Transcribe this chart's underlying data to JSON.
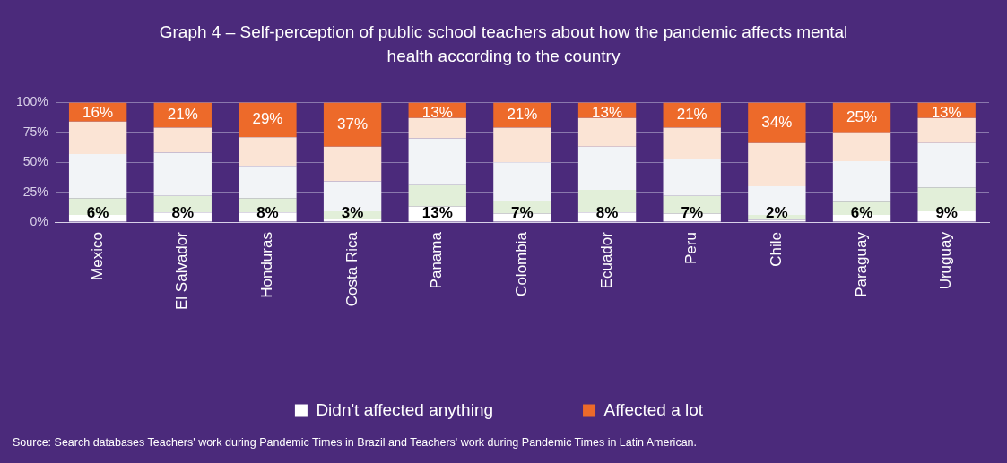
{
  "chart_data": {
    "type": "bar",
    "stacked": true,
    "title": "Graph 4 – Self-perception of public school teachers about how the pandemic affects mental health according to the country",
    "categories": [
      "Mexico",
      "El Salvador",
      "Honduras",
      "Costa Rica",
      "Panama",
      "Colombia",
      "Ecuador",
      "Peru",
      "Chile",
      "Paraguay",
      "Uruguay"
    ],
    "series": [
      {
        "name": "Didn't affected anything",
        "color": "#ffffff",
        "values": [
          6,
          8,
          8,
          3,
          13,
          7,
          8,
          7,
          2,
          6,
          9
        ],
        "value_labels": [
          "6%",
          "8%",
          "8%",
          "3%",
          "13%",
          "7%",
          "8%",
          "7%",
          "2%",
          "6%",
          "9%"
        ]
      },
      {
        "color": "#e2efd9",
        "values": [
          14,
          14,
          12,
          6,
          18,
          11,
          19,
          15,
          4,
          11,
          20
        ]
      },
      {
        "color": "#f2f4f7",
        "values": [
          37,
          36,
          27,
          25,
          39,
          32,
          36,
          31,
          24,
          34,
          37
        ]
      },
      {
        "color": "#fbe4d5",
        "values": [
          27,
          21,
          24,
          29,
          17,
          29,
          24,
          26,
          36,
          24,
          21
        ]
      },
      {
        "name": "Affected a lot",
        "color": "#ed6a2a",
        "values": [
          16,
          21,
          29,
          37,
          13,
          21,
          13,
          21,
          34,
          25,
          13
        ],
        "value_labels": [
          "16%",
          "21%",
          "29%",
          "37%",
          "13%",
          "21%",
          "13%",
          "21%",
          "34%",
          "25%",
          "13%"
        ]
      }
    ],
    "ylim": [
      0,
      100
    ],
    "yticks": [
      {
        "value": 0,
        "label": "0%"
      },
      {
        "value": 25,
        "label": "25%"
      },
      {
        "value": 50,
        "label": "50%"
      },
      {
        "value": 75,
        "label": "75%"
      },
      {
        "value": 100,
        "label": "100%"
      }
    ],
    "grid": "y",
    "legend": "bottom",
    "annotations": [
      "Source: Search databases Teachers' work during Pandemic Times in Brazil and Teachers' work during Pandemic Times in Latin American."
    ]
  }
}
